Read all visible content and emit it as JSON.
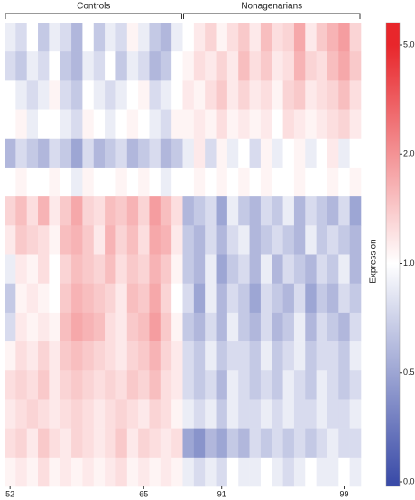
{
  "chart_data": {
    "type": "heatmap",
    "groups": [
      {
        "name": "Controls",
        "size": 16
      },
      {
        "name": "Nonagenarians",
        "size": 16
      }
    ],
    "categories": [
      "52",
      null,
      null,
      null,
      null,
      null,
      null,
      null,
      null,
      null,
      null,
      null,
      "65",
      null,
      null,
      null,
      null,
      null,
      null,
      "91",
      null,
      null,
      null,
      null,
      null,
      null,
      null,
      null,
      null,
      null,
      "99",
      null
    ],
    "z": [
      [
        0.9,
        0.8,
        1.0,
        0.7,
        0.9,
        0.8,
        0.6,
        1.0,
        0.7,
        0.9,
        0.8,
        1.1,
        0.9,
        0.7,
        0.6,
        0.9,
        1.0,
        1.2,
        1.4,
        1.1,
        1.3,
        1.5,
        1.2,
        1.6,
        1.3,
        1.4,
        1.8,
        1.2,
        1.5,
        1.7,
        1.9,
        1.4
      ],
      [
        0.8,
        0.7,
        0.9,
        0.8,
        1.0,
        0.7,
        0.6,
        0.9,
        0.8,
        1.0,
        0.7,
        0.9,
        0.8,
        0.6,
        0.7,
        1.0,
        1.1,
        1.3,
        1.2,
        1.4,
        1.2,
        1.6,
        1.3,
        1.5,
        1.2,
        1.3,
        1.7,
        1.4,
        1.3,
        1.6,
        1.8,
        1.5
      ],
      [
        1.0,
        0.9,
        0.8,
        0.9,
        1.1,
        0.8,
        0.7,
        1.0,
        0.9,
        0.8,
        0.9,
        1.0,
        1.1,
        0.8,
        0.9,
        1.0,
        1.2,
        1.1,
        1.3,
        1.5,
        1.2,
        1.4,
        1.2,
        1.3,
        1.1,
        1.4,
        1.5,
        1.2,
        1.3,
        1.4,
        1.6,
        1.3
      ],
      [
        1.0,
        1.1,
        0.9,
        1.0,
        1.0,
        0.9,
        0.8,
        1.1,
        1.0,
        0.9,
        1.0,
        1.1,
        1.0,
        0.9,
        0.8,
        1.1,
        1.1,
        1.2,
        1.1,
        1.3,
        1.1,
        1.2,
        1.1,
        1.2,
        1.0,
        1.3,
        1.2,
        1.1,
        1.2,
        1.3,
        1.4,
        1.2
      ],
      [
        0.6,
        0.8,
        0.7,
        0.6,
        0.8,
        0.7,
        0.5,
        0.8,
        0.6,
        0.7,
        0.8,
        0.6,
        0.7,
        0.8,
        0.6,
        0.7,
        0.9,
        1.2,
        0.8,
        1.1,
        0.9,
        1.0,
        0.8,
        1.1,
        0.9,
        1.0,
        1.1,
        0.9,
        1.0,
        1.2,
        0.9,
        1.0
      ],
      [
        1.0,
        1.1,
        1.0,
        1.0,
        1.1,
        1.0,
        0.9,
        1.1,
        1.0,
        1.0,
        1.1,
        1.0,
        1.1,
        1.0,
        0.9,
        1.0,
        1.0,
        1.1,
        1.0,
        1.1,
        1.0,
        1.1,
        1.0,
        1.1,
        1.0,
        1.0,
        1.1,
        1.0,
        1.0,
        1.1,
        1.0,
        1.1
      ],
      [
        1.4,
        1.6,
        1.3,
        1.7,
        1.2,
        1.5,
        1.8,
        1.4,
        1.3,
        1.6,
        1.5,
        1.7,
        1.4,
        1.9,
        1.6,
        1.3,
        0.6,
        0.7,
        0.8,
        0.5,
        0.9,
        0.7,
        0.6,
        0.8,
        0.7,
        0.9,
        0.6,
        0.8,
        0.7,
        0.6,
        0.8,
        0.5
      ],
      [
        1.2,
        1.5,
        1.4,
        1.3,
        1.1,
        1.6,
        1.7,
        1.5,
        1.2,
        1.7,
        1.4,
        1.6,
        1.3,
        1.8,
        1.7,
        1.2,
        0.7,
        0.6,
        0.8,
        0.6,
        0.8,
        0.9,
        0.6,
        0.7,
        0.8,
        0.7,
        0.6,
        0.9,
        0.7,
        0.8,
        0.7,
        0.6
      ],
      [
        0.9,
        1.2,
        1.1,
        1.3,
        1.0,
        1.4,
        1.6,
        1.5,
        1.4,
        1.6,
        1.3,
        1.5,
        1.4,
        1.7,
        1.5,
        1.1,
        0.7,
        0.6,
        0.9,
        0.5,
        0.7,
        0.8,
        0.6,
        0.9,
        0.6,
        0.8,
        0.7,
        0.6,
        0.8,
        0.7,
        0.9,
        0.6
      ],
      [
        0.7,
        1.1,
        1.2,
        1.1,
        1.0,
        1.5,
        1.7,
        1.6,
        1.5,
        1.4,
        1.2,
        1.6,
        1.5,
        1.8,
        1.4,
        1.0,
        0.8,
        0.5,
        0.9,
        0.6,
        0.8,
        0.7,
        0.5,
        0.8,
        0.7,
        0.6,
        0.8,
        0.5,
        0.7,
        0.6,
        0.8,
        0.7
      ],
      [
        0.8,
        1.2,
        1.1,
        1.2,
        1.1,
        1.6,
        1.8,
        1.7,
        1.6,
        1.3,
        1.2,
        1.5,
        1.6,
        1.9,
        1.5,
        1.1,
        0.7,
        0.6,
        0.8,
        0.6,
        0.9,
        0.7,
        0.6,
        0.8,
        0.6,
        0.7,
        0.9,
        0.6,
        0.8,
        0.7,
        0.6,
        0.8
      ],
      [
        1.1,
        1.3,
        1.2,
        1.4,
        1.2,
        1.5,
        1.6,
        1.5,
        1.4,
        1.3,
        1.2,
        1.4,
        1.5,
        1.7,
        1.4,
        1.2,
        0.8,
        0.7,
        0.9,
        0.7,
        0.8,
        0.8,
        0.7,
        0.9,
        0.7,
        0.8,
        0.9,
        0.7,
        0.8,
        0.8,
        0.7,
        0.9
      ],
      [
        1.3,
        1.4,
        1.3,
        1.5,
        1.2,
        1.4,
        1.5,
        1.4,
        1.3,
        1.4,
        1.3,
        1.5,
        1.4,
        1.6,
        1.3,
        1.2,
        0.8,
        0.7,
        0.8,
        0.6,
        0.9,
        0.8,
        0.7,
        0.8,
        0.7,
        0.9,
        0.8,
        0.7,
        0.9,
        0.8,
        0.7,
        0.8
      ],
      [
        1.2,
        1.3,
        1.4,
        1.3,
        1.2,
        1.3,
        1.4,
        1.3,
        1.2,
        1.3,
        1.4,
        1.3,
        1.2,
        1.4,
        1.3,
        1.1,
        0.9,
        0.8,
        0.9,
        0.7,
        0.9,
        0.8,
        0.8,
        0.9,
        0.8,
        0.9,
        0.8,
        0.8,
        0.9,
        0.8,
        0.8,
        0.9
      ],
      [
        1.3,
        1.4,
        1.2,
        1.5,
        1.3,
        1.2,
        1.4,
        1.3,
        1.2,
        1.3,
        1.5,
        1.2,
        1.4,
        1.3,
        1.2,
        1.3,
        0.5,
        0.4,
        0.6,
        0.5,
        0.7,
        0.6,
        0.8,
        0.7,
        0.8,
        0.7,
        0.8,
        0.7,
        0.8,
        0.9,
        0.8,
        0.8
      ],
      [
        1.1,
        1.2,
        1.1,
        1.3,
        1.1,
        1.2,
        1.1,
        1.2,
        1.1,
        1.2,
        1.3,
        1.1,
        1.2,
        1.1,
        1.2,
        1.1,
        0.9,
        0.8,
        0.9,
        0.8,
        1.0,
        0.9,
        0.9,
        1.0,
        0.9,
        0.8,
        0.9,
        1.0,
        0.9,
        0.9,
        1.0,
        0.9
      ]
    ],
    "colorbar": {
      "label": "Expression",
      "ticks": [
        {
          "value": 0,
          "label": "0.0"
        },
        0.5,
        {
          "value": 1,
          "label": "1.0"
        },
        {
          "value": 2,
          "label": "2.0"
        },
        {
          "value": 5,
          "label": "5.0"
        }
      ],
      "colors": [
        "#3b4ca8",
        "#ffffff",
        "#e8262b"
      ]
    }
  }
}
